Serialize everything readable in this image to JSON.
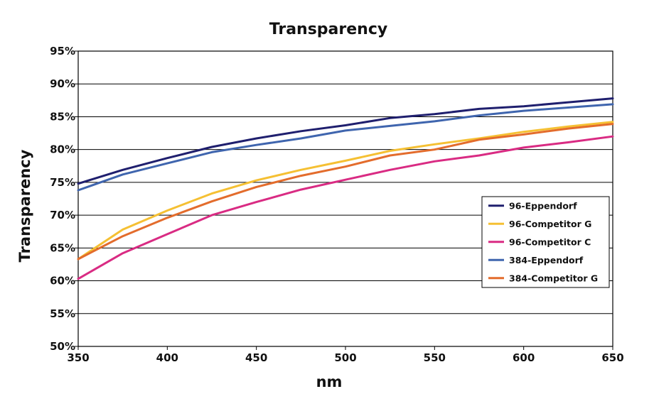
{
  "chart_data": {
    "type": "line",
    "title": "Transparency",
    "xlabel": "nm",
    "ylabel": "Transparency",
    "xlim": [
      350,
      650
    ],
    "ylim": [
      50,
      95
    ],
    "x_ticks": [
      350,
      400,
      450,
      500,
      550,
      600,
      650
    ],
    "x_tick_labels": [
      "350",
      "400",
      "450",
      "500",
      "550",
      "600",
      "650"
    ],
    "y_ticks": [
      50,
      55,
      60,
      65,
      70,
      75,
      80,
      85,
      90,
      95
    ],
    "y_tick_labels": [
      "50%",
      "55%",
      "60%",
      "65%",
      "70%",
      "75%",
      "80%",
      "85%",
      "90%",
      "95%"
    ],
    "grid": "horizontal",
    "legend_position": "right",
    "x": [
      350,
      375,
      400,
      425,
      450,
      475,
      500,
      525,
      550,
      575,
      600,
      625,
      650
    ],
    "series": [
      {
        "name": "96-Eppendorf",
        "color": "#1f1f6e",
        "values": [
          74.8,
          76.9,
          78.7,
          80.4,
          81.7,
          82.8,
          83.7,
          84.8,
          85.4,
          86.2,
          86.6,
          87.2,
          87.8
        ]
      },
      {
        "name": "96-Competitor G",
        "color": "#f5c033",
        "values": [
          63.3,
          67.8,
          70.7,
          73.3,
          75.3,
          76.9,
          78.3,
          79.8,
          80.8,
          81.7,
          82.7,
          83.5,
          84.2
        ]
      },
      {
        "name": "96-Competitor C",
        "color": "#d92b83",
        "values": [
          60.3,
          64.2,
          67.1,
          70.0,
          72.0,
          73.9,
          75.4,
          76.9,
          78.2,
          79.1,
          80.3,
          81.1,
          82.0
        ]
      },
      {
        "name": "384-Eppendorf",
        "color": "#3f65ae",
        "values": [
          73.8,
          76.2,
          77.9,
          79.6,
          80.7,
          81.7,
          82.9,
          83.6,
          84.3,
          85.2,
          85.9,
          86.4,
          86.9
        ]
      },
      {
        "name": "384-Competitor G",
        "color": "#e36c2c",
        "values": [
          63.3,
          66.8,
          69.6,
          72.1,
          74.3,
          76.0,
          77.4,
          79.1,
          80.0,
          81.5,
          82.3,
          83.2,
          83.9
        ]
      }
    ]
  }
}
